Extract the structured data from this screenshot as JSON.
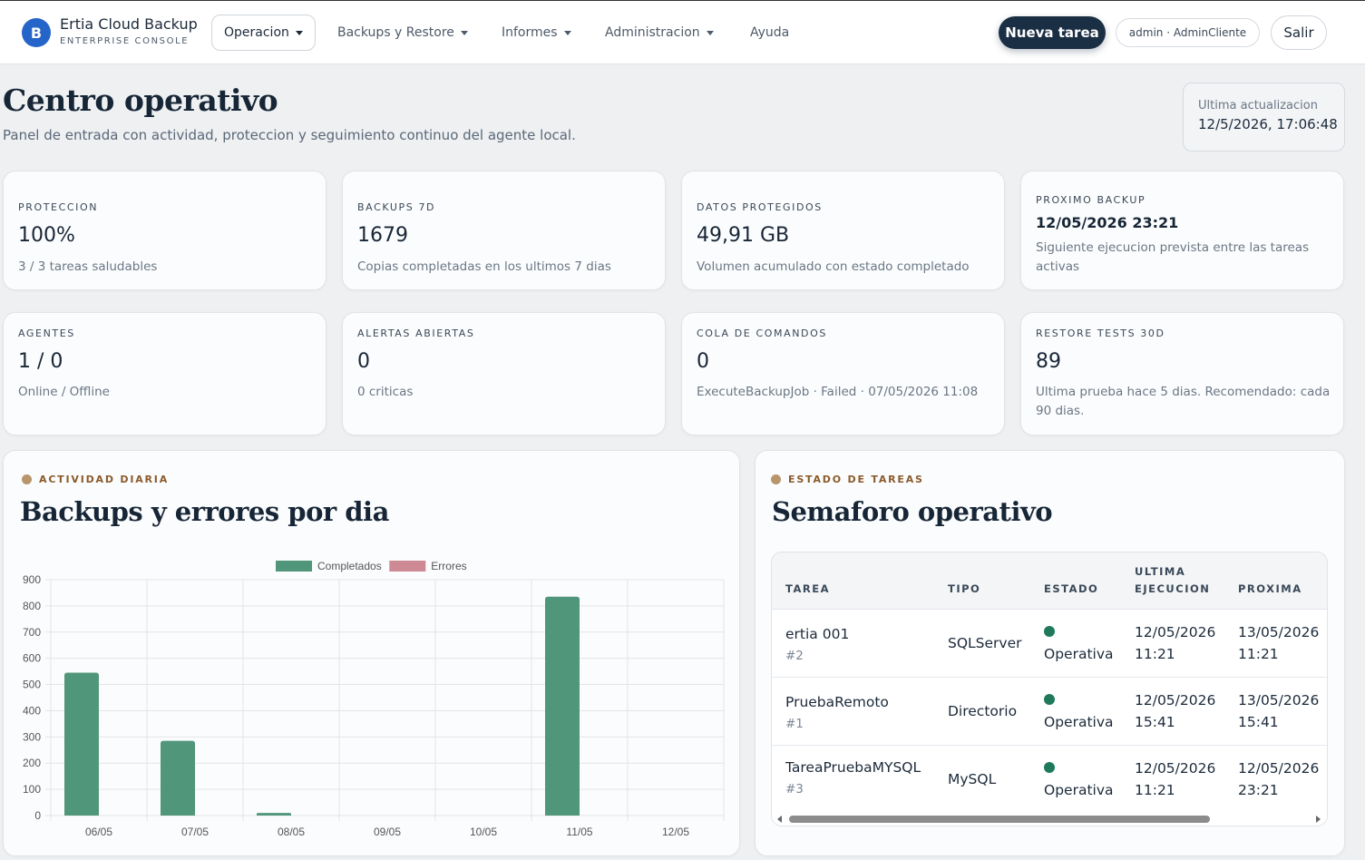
{
  "header": {
    "logo_letter": "B",
    "brand_title": "Ertia Cloud Backup",
    "brand_subtitle": "ENTERPRISE CONSOLE",
    "nav": [
      {
        "label": "Operacion"
      },
      {
        "label": "Backups y Restore"
      },
      {
        "label": "Informes"
      },
      {
        "label": "Administracion"
      },
      {
        "label": "Ayuda"
      }
    ],
    "new_task_label": "Nueva tarea",
    "user_label": "admin · AdminCliente",
    "logout_label": "Salir"
  },
  "page": {
    "title": "Centro operativo",
    "subtitle": "Panel de entrada con actividad, proteccion y seguimiento continuo del agente local.",
    "last_update_label": "Ultima actualizacion",
    "last_update_value": "12/5/2026, 17:06:48"
  },
  "stats": [
    {
      "label": "PROTECCION",
      "value": "100%",
      "desc": "3 / 3 tareas saludables"
    },
    {
      "label": "BACKUPS 7D",
      "value": "1679",
      "desc": "Copias completadas en los ultimos 7 dias"
    },
    {
      "label": "DATOS PROTEGIDOS",
      "value": "49,91 GB",
      "desc": "Volumen acumulado con estado completado"
    },
    {
      "label": "PROXIMO BACKUP",
      "value": "12/05/2026 23:21",
      "desc": "Siguiente ejecucion prevista entre las tareas activas"
    },
    {
      "label": "AGENTES",
      "value": "1 / 0",
      "desc": "Online / Offline"
    },
    {
      "label": "ALERTAS ABIERTAS",
      "value": "0",
      "desc": "0 criticas"
    },
    {
      "label": "COLA DE COMANDOS",
      "value": "0",
      "desc": "ExecuteBackupJob · Failed · 07/05/2026 11:08"
    },
    {
      "label": "RESTORE TESTS 30D",
      "value": "89",
      "desc": "Ultima prueba hace 5 dias. Recomendado: cada 90 dias."
    }
  ],
  "activity_panel": {
    "kicker": "ACTIVIDAD DIARIA",
    "title": "Backups y errores por dia"
  },
  "chart_data": {
    "type": "bar",
    "categories": [
      "06/05",
      "07/05",
      "08/05",
      "09/05",
      "10/05",
      "11/05",
      "12/05"
    ],
    "series": [
      {
        "name": "Completados",
        "values": [
          545,
          285,
          10,
          0,
          0,
          835,
          0
        ],
        "color": "#50967a"
      },
      {
        "name": "Errores",
        "values": [
          0,
          0,
          0,
          0,
          0,
          0,
          0
        ],
        "color": "#cd8a94"
      }
    ],
    "ylim": [
      0,
      900
    ],
    "yticks": [
      0,
      100,
      200,
      300,
      400,
      500,
      600,
      700,
      800,
      900
    ],
    "legend": "top-center",
    "grid": true
  },
  "tasks_panel": {
    "kicker": "ESTADO DE TAREAS",
    "title": "Semaforo operativo",
    "columns": [
      [
        "TAREA"
      ],
      [
        "TIPO"
      ],
      [
        "ESTADO"
      ],
      [
        "ULTIMA",
        "EJECUCION"
      ],
      [
        "PROXIMA"
      ]
    ],
    "status_color": "#1f7a5c",
    "rows": [
      {
        "name": "ertia 001",
        "id": "#2",
        "type": "SQLServer",
        "status": "Operativa",
        "last": [
          "12/05/2026",
          "11:21"
        ],
        "next": [
          "13/05/2026",
          "11:21"
        ]
      },
      {
        "name": "PruebaRemoto",
        "id": "#1",
        "type": "Directorio",
        "status": "Operativa",
        "last": [
          "12/05/2026",
          "15:41"
        ],
        "next": [
          "13/05/2026",
          "15:41"
        ]
      },
      {
        "name": "TareaPruebaMYSQL",
        "id": "#3",
        "type": "MySQL",
        "status": "Operativa",
        "last": [
          "12/05/2026",
          "11:21"
        ],
        "next": [
          "12/05/2026",
          "23:21"
        ]
      }
    ]
  }
}
